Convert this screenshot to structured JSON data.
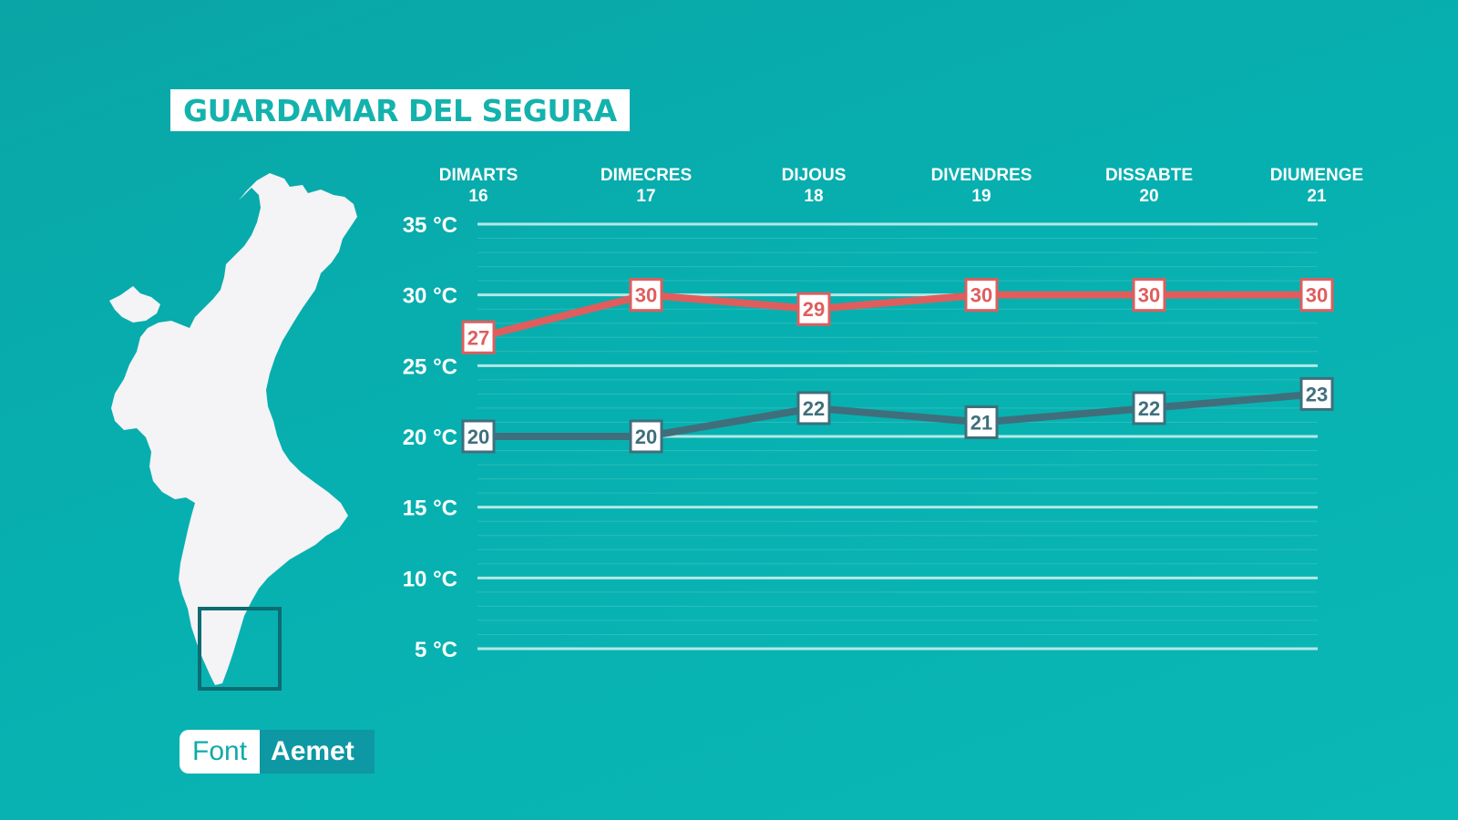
{
  "title": "GUARDAMAR DEL SEGURA",
  "source": {
    "label": "Font",
    "value": "Aemet"
  },
  "colors": {
    "max": "#e05d5d",
    "min": "#3f6f7c",
    "background": "#0aafb0",
    "map": "#f4f3f6",
    "locator": "#0d6b72"
  },
  "chart_data": {
    "type": "line",
    "categories": [
      {
        "day": "DIMARTS",
        "date": "16"
      },
      {
        "day": "DIMECRES",
        "date": "17"
      },
      {
        "day": "DIJOUS",
        "date": "18"
      },
      {
        "day": "DIVENDRES",
        "date": "19"
      },
      {
        "day": "DISSABTE",
        "date": "20"
      },
      {
        "day": "DIUMENGE",
        "date": "21"
      }
    ],
    "series": [
      {
        "values": [
          27,
          30,
          29,
          30,
          30,
          30
        ],
        "color": "#e05d5d"
      },
      {
        "values": [
          20,
          20,
          22,
          21,
          22,
          23
        ],
        "color": "#3f6f7c"
      }
    ],
    "yticks": [
      "35 °C",
      "30 °C",
      "25 °C",
      "20 °C",
      "15 °C",
      "10 °C",
      "5 °C"
    ],
    "ytick_values": [
      35,
      30,
      25,
      20,
      15,
      10,
      5
    ],
    "ylim": [
      5,
      35
    ],
    "grid": true,
    "map_icon": "valencia-region-map"
  }
}
